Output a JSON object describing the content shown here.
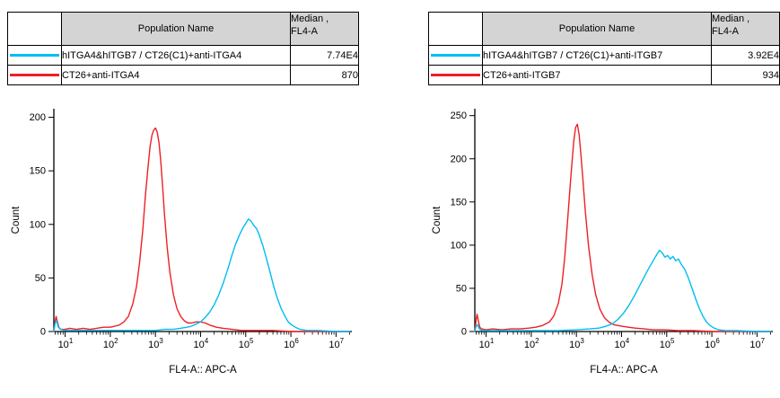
{
  "page": {
    "background": "#ffffff"
  },
  "colors": {
    "cyan_series": "#00bdf2",
    "red_series": "#ee2024",
    "header_gray": "#d4d4d4",
    "axis_black": "#000000"
  },
  "panels": [
    {
      "table": {
        "header": {
          "population": "Population Name",
          "median_line1": "Median ,",
          "median_line2": "FL4-A"
        },
        "rows": [
          {
            "color": "#00bdf2",
            "name": "hITGA4&hITGB7 / CT26(C1)+anti-ITGA4",
            "median": "7.74E4"
          },
          {
            "color": "#ee2024",
            "name": "CT26+anti-ITGA4",
            "median": "870"
          }
        ]
      }
    },
    {
      "table": {
        "header": {
          "population": "Population Name",
          "median_line1": "Median ,",
          "median_line2": "FL4-A"
        },
        "rows": [
          {
            "color": "#00bdf2",
            "name": "hITGA4&hITGB7 / CT26(C1)+anti-ITGB7",
            "median": "3.92E4"
          },
          {
            "color": "#ee2024",
            "name": "CT26+anti-ITGB7",
            "median": "934"
          }
        ]
      }
    }
  ],
  "chart_data": [
    {
      "type": "line",
      "subtype": "flow-cytometry-histogram",
      "xlabel": "FL4-A:: APC-A",
      "ylabel": "Count",
      "x_scale": "log10",
      "xlim_log10": [
        0.75,
        7.35
      ],
      "ylim": [
        0,
        208
      ],
      "yticks": [
        0,
        50,
        100,
        150,
        200
      ],
      "xtick_exponents": [
        1,
        2,
        3,
        4,
        5,
        6,
        7
      ],
      "grid": false,
      "legend_position": "table-above",
      "series": [
        {
          "name": "CT26+anti-ITGA4",
          "color": "#ee2024",
          "median": "870",
          "x_log10": [
            0.75,
            0.78,
            0.8,
            0.83,
            0.86,
            0.9,
            1.0,
            1.1,
            1.25,
            1.4,
            1.55,
            1.7,
            1.85,
            2.0,
            2.1,
            2.2,
            2.3,
            2.4,
            2.5,
            2.58,
            2.65,
            2.72,
            2.78,
            2.84,
            2.88,
            2.92,
            2.96,
            3.0,
            3.04,
            3.08,
            3.12,
            3.16,
            3.2,
            3.26,
            3.32,
            3.4,
            3.48,
            3.56,
            3.64,
            3.72,
            3.8,
            3.9,
            4.0,
            4.1,
            4.2,
            4.35,
            4.5,
            4.7,
            4.9,
            5.2,
            5.6,
            6.0,
            6.5,
            7.0,
            7.3
          ],
          "y": [
            0,
            10,
            14,
            9,
            4,
            2,
            2,
            3,
            2,
            3,
            2,
            3,
            4,
            4,
            5,
            6,
            9,
            14,
            26,
            42,
            65,
            95,
            128,
            155,
            172,
            183,
            188,
            190,
            186,
            176,
            158,
            135,
            110,
            78,
            55,
            34,
            21,
            14,
            10,
            8,
            8,
            9,
            9,
            8,
            6,
            4,
            3,
            2,
            1,
            1,
            1,
            0,
            0,
            0,
            0
          ]
        },
        {
          "name": "hITGA4&hITGB7 / CT26(C1)+anti-ITGA4",
          "color": "#00bdf2",
          "median": "7.74E4",
          "x_log10": [
            0.75,
            0.78,
            0.81,
            0.85,
            0.9,
            1.0,
            1.2,
            1.5,
            1.8,
            2.1,
            2.4,
            2.7,
            3.0,
            3.2,
            3.4,
            3.55,
            3.7,
            3.8,
            3.9,
            4.0,
            4.1,
            4.2,
            4.3,
            4.4,
            4.5,
            4.6,
            4.7,
            4.78,
            4.86,
            4.94,
            5.0,
            5.06,
            5.12,
            5.18,
            5.24,
            5.3,
            5.38,
            5.46,
            5.54,
            5.62,
            5.7,
            5.78,
            5.86,
            5.94,
            6.02,
            6.1,
            6.2,
            6.35,
            6.6,
            7.0,
            7.3
          ],
          "y": [
            0,
            8,
            10,
            4,
            2,
            1,
            1,
            1,
            1,
            1,
            1,
            1,
            1,
            2,
            2,
            3,
            4,
            5,
            7,
            9,
            13,
            18,
            25,
            34,
            45,
            58,
            72,
            82,
            90,
            97,
            101,
            105,
            103,
            99,
            96,
            90,
            80,
            68,
            55,
            42,
            31,
            22,
            15,
            9,
            6,
            4,
            2,
            1,
            1,
            0,
            0
          ]
        }
      ]
    },
    {
      "type": "line",
      "subtype": "flow-cytometry-histogram",
      "xlabel": "FL4-A:: APC-A",
      "ylabel": "Count",
      "x_scale": "log10",
      "xlim_log10": [
        0.75,
        7.35
      ],
      "ylim": [
        0,
        258
      ],
      "yticks": [
        0,
        50,
        100,
        150,
        200,
        250
      ],
      "xtick_exponents": [
        1,
        2,
        3,
        4,
        5,
        6,
        7
      ],
      "grid": false,
      "legend_position": "table-above",
      "series": [
        {
          "name": "CT26+anti-ITGB7",
          "color": "#ee2024",
          "median": "934",
          "x_log10": [
            0.75,
            0.78,
            0.8,
            0.83,
            0.86,
            0.9,
            1.0,
            1.15,
            1.35,
            1.55,
            1.75,
            1.95,
            2.1,
            2.25,
            2.4,
            2.5,
            2.6,
            2.68,
            2.74,
            2.8,
            2.85,
            2.9,
            2.94,
            2.98,
            3.02,
            3.06,
            3.1,
            3.15,
            3.2,
            3.27,
            3.35,
            3.43,
            3.52,
            3.62,
            3.72,
            3.82,
            3.92,
            4.02,
            4.15,
            4.3,
            4.5,
            4.7,
            4.95,
            5.25,
            5.6,
            6.0,
            6.5,
            7.0,
            7.3
          ],
          "y": [
            0,
            14,
            20,
            12,
            5,
            3,
            2,
            3,
            2,
            3,
            3,
            4,
            5,
            7,
            11,
            18,
            33,
            55,
            85,
            125,
            160,
            195,
            220,
            236,
            240,
            228,
            205,
            172,
            138,
            98,
            65,
            42,
            26,
            16,
            11,
            8,
            7,
            6,
            5,
            4,
            3,
            2,
            2,
            1,
            1,
            0,
            0,
            0,
            0
          ]
        },
        {
          "name": "hITGA4&hITGB7 / CT26(C1)+anti-ITGB7",
          "color": "#00bdf2",
          "median": "3.92E4",
          "x_log10": [
            0.75,
            0.78,
            0.81,
            0.85,
            0.92,
            1.1,
            1.4,
            1.8,
            2.2,
            2.6,
            3.0,
            3.3,
            3.5,
            3.65,
            3.8,
            3.92,
            4.04,
            4.16,
            4.28,
            4.4,
            4.5,
            4.6,
            4.7,
            4.78,
            4.84,
            4.9,
            4.96,
            5.02,
            5.08,
            5.14,
            5.2,
            5.26,
            5.32,
            5.4,
            5.48,
            5.56,
            5.64,
            5.72,
            5.8,
            5.88,
            5.96,
            6.05,
            6.15,
            6.3,
            6.55,
            7.0,
            7.3
          ],
          "y": [
            0,
            6,
            8,
            3,
            1,
            1,
            1,
            1,
            1,
            1,
            2,
            3,
            4,
            6,
            9,
            14,
            21,
            30,
            41,
            53,
            63,
            73,
            82,
            89,
            94,
            91,
            86,
            88,
            84,
            87,
            82,
            84,
            78,
            72,
            62,
            50,
            38,
            27,
            18,
            11,
            7,
            4,
            2,
            1,
            1,
            0,
            0
          ]
        }
      ]
    }
  ]
}
